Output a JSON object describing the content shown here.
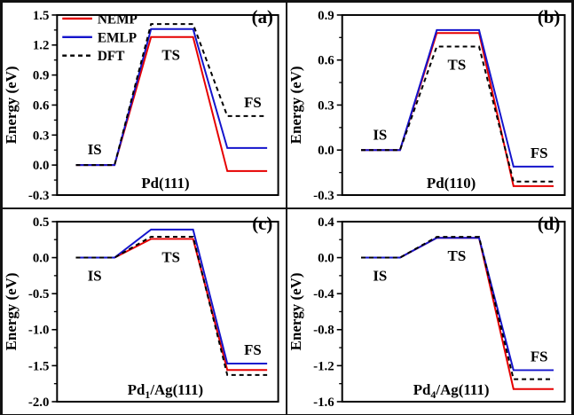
{
  "figure": {
    "ylabel": "Energy (eV)",
    "stations": [
      "IS",
      "TS",
      "FS"
    ],
    "legend": [
      {
        "label": "NEMP",
        "color": "#e60000",
        "dashed": false
      },
      {
        "label": "EMLP",
        "color": "#1414cc",
        "dashed": false
      },
      {
        "label": "DFT",
        "color": "#000000",
        "dashed": true
      }
    ]
  },
  "chart_data": [
    {
      "type": "line",
      "panel_letter": "(a)",
      "surface_label": {
        "prefix": "Pd",
        "sub": "",
        "suffix": "(111)"
      },
      "ylabel": "Energy (eV)",
      "ylim": [
        -0.3,
        1.5
      ],
      "ytick_step": 0.3,
      "x_stations": [
        "IS",
        "TS",
        "FS"
      ],
      "series": [
        {
          "name": "NEMP",
          "color": "#e60000",
          "dashed": false,
          "IS": 0.0,
          "TS": 1.28,
          "FS": -0.06
        },
        {
          "name": "EMLP",
          "color": "#1414cc",
          "dashed": false,
          "IS": 0.0,
          "TS": 1.36,
          "FS": 0.17
        },
        {
          "name": "DFT",
          "color": "#000000",
          "dashed": true,
          "IS": 0.0,
          "TS": 1.41,
          "FS": 0.49
        }
      ],
      "show_legend": true,
      "is_label_below": false
    },
    {
      "type": "line",
      "panel_letter": "(b)",
      "surface_label": {
        "prefix": "Pd",
        "sub": "",
        "suffix": "(110)"
      },
      "ylabel": "Energy (eV)",
      "ylim": [
        -0.3,
        0.9
      ],
      "ytick_step": 0.3,
      "x_stations": [
        "IS",
        "TS",
        "FS"
      ],
      "series": [
        {
          "name": "NEMP",
          "color": "#e60000",
          "dashed": false,
          "IS": 0.0,
          "TS": 0.78,
          "FS": -0.24
        },
        {
          "name": "EMLP",
          "color": "#1414cc",
          "dashed": false,
          "IS": 0.0,
          "TS": 0.8,
          "FS": -0.11
        },
        {
          "name": "DFT",
          "color": "#000000",
          "dashed": true,
          "IS": 0.0,
          "TS": 0.69,
          "FS": -0.21
        }
      ],
      "show_legend": false,
      "is_label_below": false
    },
    {
      "type": "line",
      "panel_letter": "(c)",
      "surface_label": {
        "prefix": "Pd",
        "sub": "1",
        "suffix": "/Ag(111)"
      },
      "ylabel": "Energy (eV)",
      "ylim": [
        -2.0,
        0.5
      ],
      "ytick_step": 0.5,
      "x_stations": [
        "IS",
        "TS",
        "FS"
      ],
      "series": [
        {
          "name": "NEMP",
          "color": "#e60000",
          "dashed": false,
          "IS": 0.0,
          "TS": 0.26,
          "FS": -1.56
        },
        {
          "name": "EMLP",
          "color": "#1414cc",
          "dashed": false,
          "IS": 0.0,
          "TS": 0.39,
          "FS": -1.47
        },
        {
          "name": "DFT",
          "color": "#000000",
          "dashed": true,
          "IS": 0.0,
          "TS": 0.29,
          "FS": -1.63
        }
      ],
      "show_legend": false,
      "is_label_below": true
    },
    {
      "type": "line",
      "panel_letter": "(d)",
      "surface_label": {
        "prefix": "Pd",
        "sub": "4",
        "suffix": "/Ag(111)"
      },
      "ylabel": "Energy (eV)",
      "ylim": [
        -1.6,
        0.4
      ],
      "ytick_step": 0.4,
      "x_stations": [
        "IS",
        "TS",
        "FS"
      ],
      "series": [
        {
          "name": "NEMP",
          "color": "#e60000",
          "dashed": false,
          "IS": 0.0,
          "TS": 0.22,
          "FS": -1.46
        },
        {
          "name": "EMLP",
          "color": "#1414cc",
          "dashed": false,
          "IS": 0.0,
          "TS": 0.22,
          "FS": -1.25
        },
        {
          "name": "DFT",
          "color": "#000000",
          "dashed": true,
          "IS": 0.0,
          "TS": 0.23,
          "FS": -1.35
        }
      ],
      "show_legend": false,
      "is_label_below": true
    }
  ]
}
